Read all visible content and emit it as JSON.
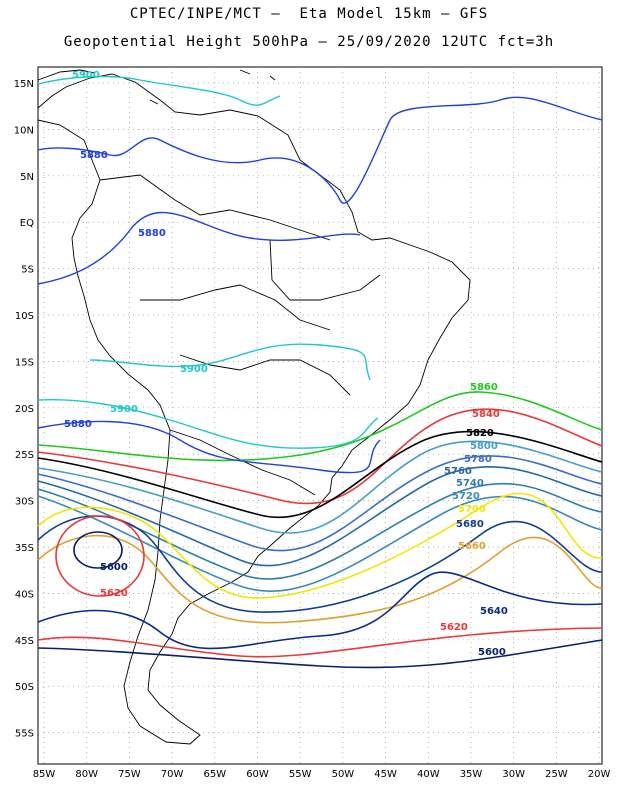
{
  "title_line1": "CPTEC/INPE/MCT –  Eta Model 15km – GFS",
  "title_line2": "Geopotential Height 500hPa – 25/09/2020 12UTC fct=3h",
  "lat_labels": [
    "15N",
    "10N",
    "5N",
    "EQ",
    "5S",
    "10S",
    "15S",
    "20S",
    "25S",
    "30S",
    "35S",
    "40S",
    "45S",
    "50S",
    "55S"
  ],
  "lon_labels": [
    "85W",
    "80W",
    "75W",
    "70W",
    "65W",
    "60W",
    "55W",
    "50W",
    "45W",
    "40W",
    "35W",
    "30W",
    "25W",
    "20W"
  ],
  "contours": [
    {
      "level": "5600",
      "color": "#0a1f6b"
    },
    {
      "level": "5620",
      "color": "#e8383a"
    },
    {
      "level": "5640",
      "color": "#0a2a8a"
    },
    {
      "level": "5660",
      "color": "#e0a030"
    },
    {
      "level": "5680",
      "color": "#123c8c"
    },
    {
      "level": "5700",
      "color": "#f0e800"
    },
    {
      "level": "5720",
      "color": "#3a8ab8"
    },
    {
      "level": "5740",
      "color": "#2f80a8"
    },
    {
      "level": "5760",
      "color": "#2668a8"
    },
    {
      "level": "5780",
      "color": "#3a6cc8"
    },
    {
      "level": "5800",
      "color": "#46a0c8"
    },
    {
      "level": "5820",
      "color": "#000000"
    },
    {
      "level": "5840",
      "color": "#e8383a"
    },
    {
      "level": "5860",
      "color": "#22c81e"
    },
    {
      "level": "5880",
      "color": "#2040e0"
    },
    {
      "level": "5900",
      "color": "#22c8c8"
    }
  ],
  "map_colors": {
    "coast": "#000000",
    "grid": "#9a9a9a",
    "frame": "#000000"
  }
}
